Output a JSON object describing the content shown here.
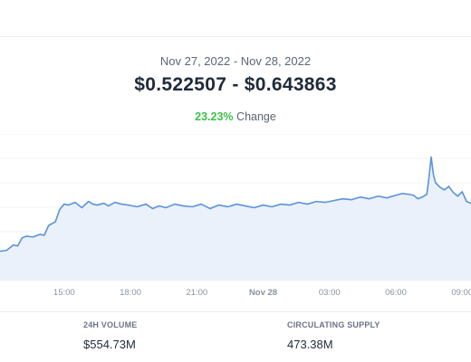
{
  "header": {
    "date_range": "Nov 27, 2022 - Nov 28, 2022",
    "price_range": "$0.522507 - $0.643863",
    "change_pct": "23.23%",
    "change_label": "Change"
  },
  "stats": {
    "volume_label": "24H VOLUME",
    "volume_value": "$554.73M",
    "supply_label": "CIRCULATING SUPPLY",
    "supply_value": "473.38M"
  },
  "colors": {
    "line": "#5b93d9",
    "fill": "#eaf1fb",
    "grid": "#f1f3f6",
    "positive": "#3cc14a"
  },
  "chart_data": {
    "type": "area",
    "title": "",
    "xlabel": "",
    "ylabel": "",
    "x_ticks": [
      {
        "hour": 15,
        "label": "15:00",
        "bold": false
      },
      {
        "hour": 18,
        "label": "18:00",
        "bold": false
      },
      {
        "hour": 21,
        "label": "21:00",
        "bold": false
      },
      {
        "hour": 24,
        "label": "Nov 28",
        "bold": true
      },
      {
        "hour": 27,
        "label": "03:00",
        "bold": false
      },
      {
        "hour": 30,
        "label": "06:00",
        "bold": false
      },
      {
        "hour": 33,
        "label": "09:00",
        "bold": false
      }
    ],
    "xlim": [
      12.1,
      33.4
    ],
    "ylim": [
      0.49,
      0.655
    ],
    "grid": true,
    "series": [
      {
        "x": [
          12.1,
          12.4,
          12.7,
          12.9,
          13.1,
          13.3,
          13.6,
          13.9,
          14.1,
          14.3,
          14.6,
          14.8,
          15.0,
          15.2,
          15.5,
          15.8,
          16.1,
          16.3,
          16.5,
          16.8,
          17.0,
          17.3,
          17.6,
          17.9,
          18.3,
          18.7,
          19.0,
          19.3,
          19.6,
          20.0,
          20.4,
          20.8,
          21.2,
          21.6,
          22.0,
          22.4,
          22.8,
          23.2,
          23.6,
          24.0,
          24.4,
          24.8,
          25.2,
          25.6,
          26.0,
          26.4,
          26.8,
          27.2,
          27.6,
          28.0,
          28.4,
          28.8,
          29.2,
          29.6,
          30.0,
          30.3,
          30.6,
          30.8,
          31.0,
          31.2,
          31.4,
          31.5,
          31.6,
          31.7,
          31.8,
          32.0,
          32.2,
          32.4,
          32.6,
          32.8,
          33.0,
          33.2,
          33.4
        ],
        "y": [
          0.523,
          0.524,
          0.53,
          0.529,
          0.538,
          0.54,
          0.539,
          0.542,
          0.541,
          0.552,
          0.556,
          0.57,
          0.576,
          0.575,
          0.578,
          0.572,
          0.579,
          0.576,
          0.575,
          0.577,
          0.574,
          0.578,
          0.576,
          0.575,
          0.573,
          0.576,
          0.571,
          0.574,
          0.572,
          0.576,
          0.574,
          0.573,
          0.576,
          0.571,
          0.575,
          0.573,
          0.576,
          0.574,
          0.572,
          0.575,
          0.573,
          0.576,
          0.575,
          0.578,
          0.576,
          0.579,
          0.578,
          0.58,
          0.582,
          0.581,
          0.584,
          0.582,
          0.585,
          0.583,
          0.586,
          0.588,
          0.587,
          0.586,
          0.582,
          0.584,
          0.587,
          0.606,
          0.629,
          0.609,
          0.6,
          0.595,
          0.592,
          0.596,
          0.589,
          0.585,
          0.59,
          0.579,
          0.577
        ]
      }
    ]
  }
}
